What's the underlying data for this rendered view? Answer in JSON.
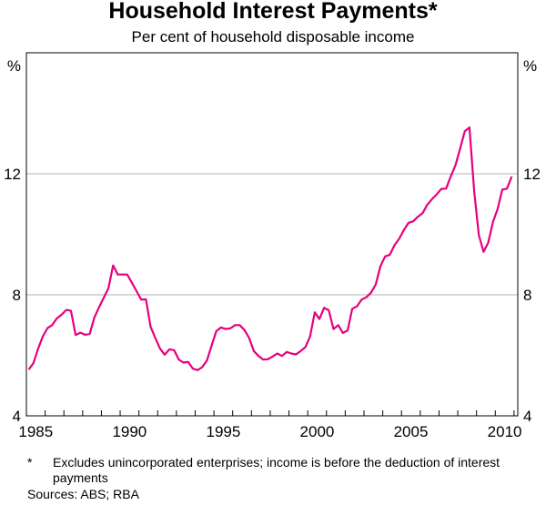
{
  "chart_data": {
    "type": "line",
    "title": "Household Interest Payments*",
    "subtitle": "Per cent of household disposable income",
    "ylabel_left": "%",
    "ylabel_right": "%",
    "ylim": [
      4,
      16
    ],
    "yticks": [
      4,
      8,
      12
    ],
    "xlim": [
      1985,
      2011.2
    ],
    "xtick_labels": [
      "1985",
      "1990",
      "1995",
      "2000",
      "2005",
      "2010"
    ],
    "grid": true,
    "x_start": "1985Q1",
    "x_frequency": "quarterly",
    "series": [
      {
        "color": "#e6007e",
        "values": [
          5.53,
          5.74,
          6.22,
          6.62,
          6.9,
          7.0,
          7.22,
          7.34,
          7.5,
          7.47,
          6.67,
          6.75,
          6.68,
          6.71,
          7.25,
          7.59,
          7.9,
          8.22,
          8.97,
          8.67,
          8.67,
          8.67,
          8.4,
          8.12,
          7.84,
          7.85,
          6.94,
          6.57,
          6.22,
          6.02,
          6.2,
          6.17,
          5.86,
          5.76,
          5.78,
          5.56,
          5.51,
          5.61,
          5.83,
          6.32,
          6.8,
          6.92,
          6.87,
          6.89,
          7.0,
          7.0,
          6.84,
          6.57,
          6.14,
          5.98,
          5.86,
          5.87,
          5.96,
          6.06,
          5.98,
          6.11,
          6.06,
          6.03,
          6.14,
          6.27,
          6.62,
          7.42,
          7.2,
          7.57,
          7.49,
          6.87,
          7.0,
          6.74,
          6.82,
          7.54,
          7.62,
          7.84,
          7.92,
          8.07,
          8.34,
          8.94,
          9.27,
          9.32,
          9.64,
          9.85,
          10.14,
          10.38,
          10.43,
          10.58,
          10.7,
          10.98,
          11.16,
          11.32,
          11.5,
          11.51,
          11.91,
          12.28,
          12.83,
          13.41,
          13.53,
          11.42,
          9.97,
          9.42,
          9.72,
          10.41,
          10.83,
          11.48,
          11.51,
          11.91
        ]
      }
    ]
  },
  "footnote": {
    "marker": "*",
    "text": "Excludes unincorporated enterprises; income is before the deduction of interest payments",
    "sources": "Sources: ABS; RBA"
  }
}
